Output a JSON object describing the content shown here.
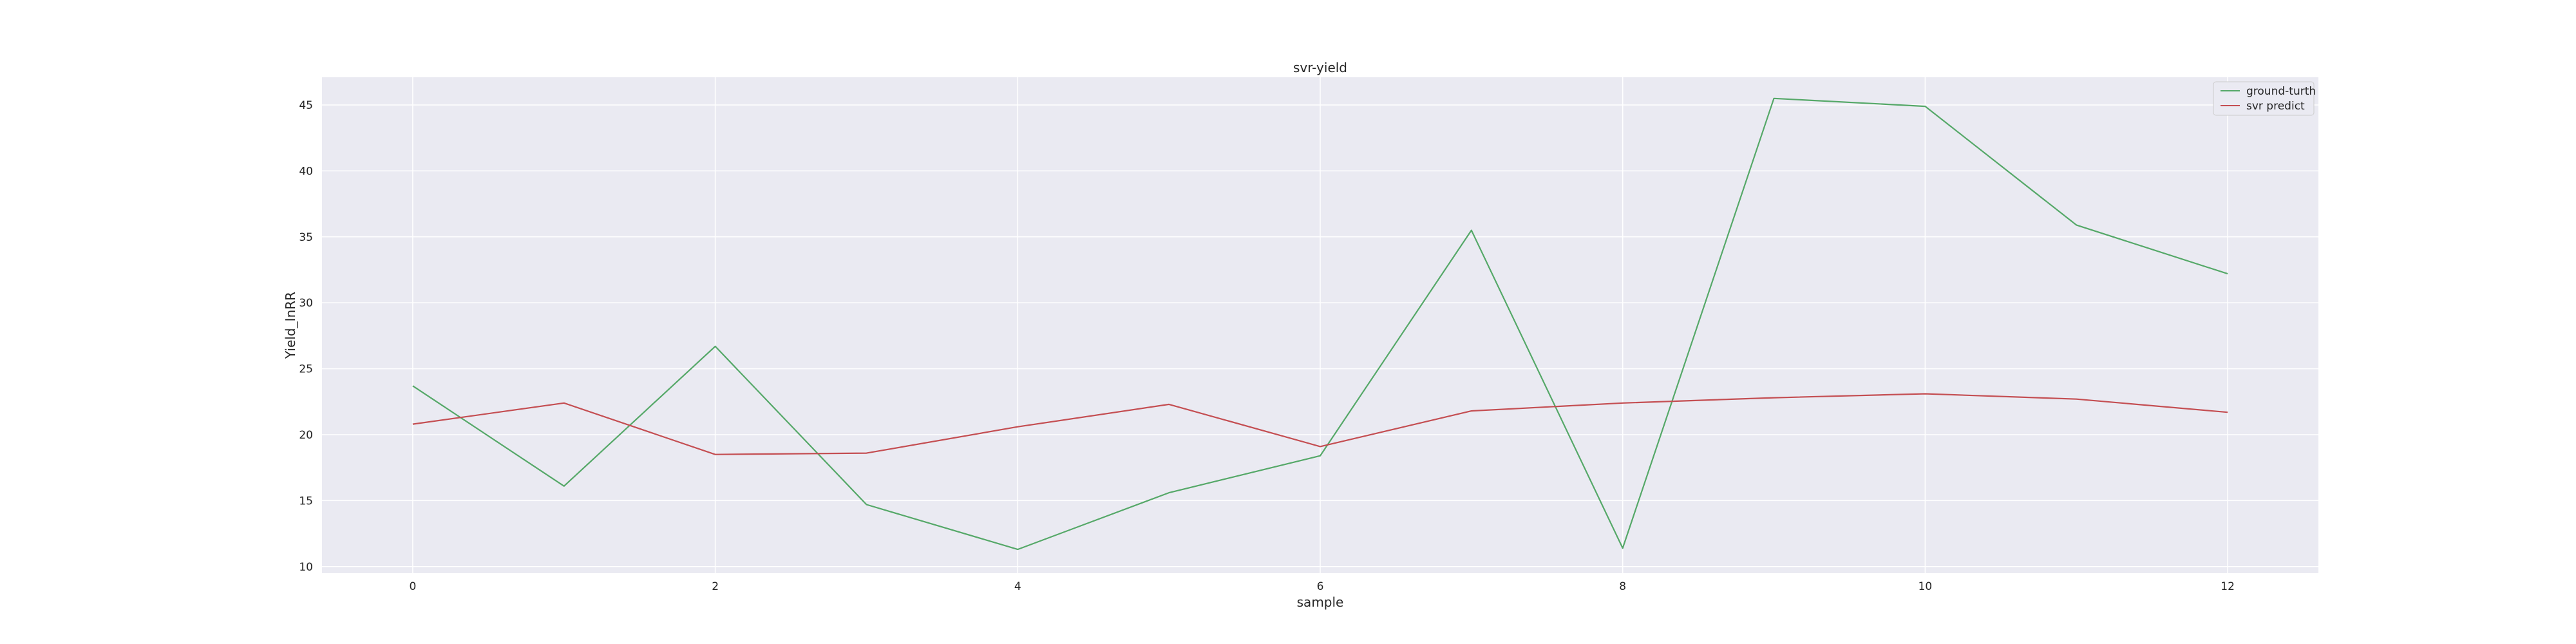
{
  "chart_data": {
    "type": "line",
    "title": "svr-yield",
    "xlabel": "sample",
    "ylabel": "Yield_InRR",
    "x": [
      0,
      1,
      2,
      3,
      4,
      5,
      6,
      7,
      8,
      9,
      10,
      11,
      12
    ],
    "xlim": [
      -0.6,
      12.6
    ],
    "ylim": [
      9.5,
      47.1
    ],
    "xticks": [
      0,
      2,
      4,
      6,
      8,
      10,
      12
    ],
    "yticks": [
      10,
      15,
      20,
      25,
      30,
      35,
      40,
      45
    ],
    "grid": true,
    "legend_position": "top-right",
    "series": [
      {
        "name": "ground-turth",
        "color": "#55a868",
        "values": [
          23.7,
          16.1,
          26.7,
          14.7,
          11.3,
          15.6,
          18.4,
          35.5,
          11.4,
          45.5,
          44.9,
          35.9,
          32.2
        ]
      },
      {
        "name": "svr predict",
        "color": "#c44e52",
        "values": [
          20.8,
          22.4,
          18.5,
          18.6,
          20.6,
          22.3,
          19.1,
          21.8,
          22.4,
          22.8,
          23.1,
          22.7,
          21.7
        ]
      }
    ]
  }
}
